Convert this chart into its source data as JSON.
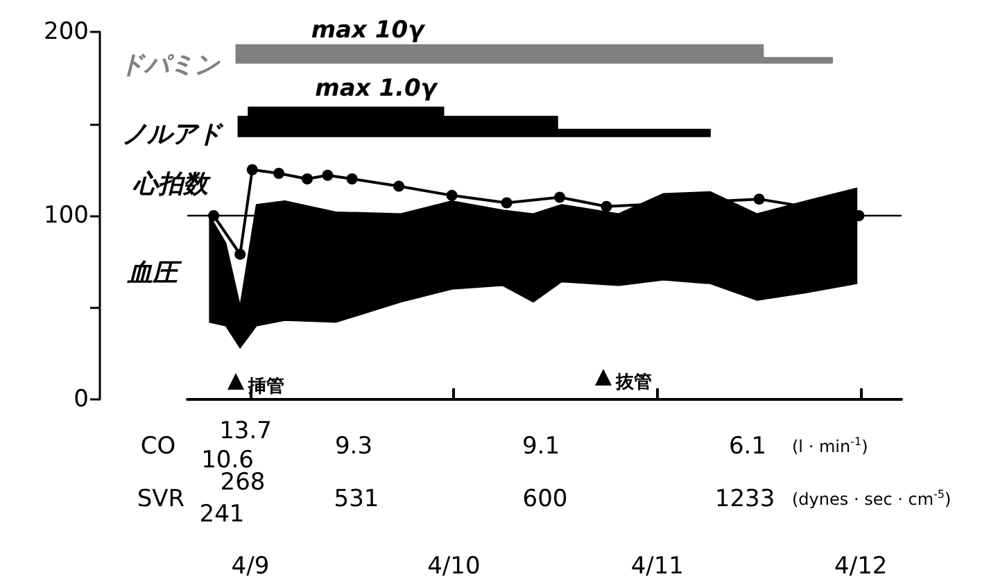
{
  "chart_data": {
    "type": "line",
    "xlim": [
      "--04-08T16:34",
      "--04-12T04:48"
    ],
    "xticks": [
      {
        "value": "--04-09",
        "label": "4/9"
      },
      {
        "value": "--04-10",
        "label": "4/10"
      },
      {
        "value": "--04-11",
        "label": "4/11"
      },
      {
        "value": "--04-12",
        "label": "4/12"
      }
    ],
    "ylim": [
      0,
      200
    ],
    "yticks": [
      0,
      100,
      200
    ],
    "series": [
      {
        "name": "ドパミン",
        "color": "#808080",
        "x": [
          "--04-08T22:19",
          "--04-11T12:29",
          "--04-11T12:29",
          "--04-11T20:38"
        ],
        "values": [
          null,
          null,
          null,
          null
        ],
        "upper": [
          193,
          193,
          186,
          186
        ],
        "lower": [
          183,
          183,
          183,
          183
        ]
      },
      {
        "name": "ノルアド",
        "color": "#000000",
        "x": [
          "--04-08T22:34",
          "--04-08T23:46",
          "--04-08T23:46",
          "--04-09T22:48",
          "--04-09T22:48",
          "--04-10T12:14",
          "--04-10T12:14",
          "--04-11T06:14"
        ],
        "values": [
          null,
          null,
          null,
          null,
          null,
          null,
          null,
          null
        ],
        "upper": [
          154,
          154,
          159,
          159,
          154,
          154,
          147,
          147
        ],
        "lower": [
          143,
          143,
          143,
          143,
          143,
          143,
          143,
          143
        ]
      },
      {
        "name": "心拍数",
        "color": "#000000",
        "marker": "circle",
        "x": [
          "--04-08T19:41",
          "--04-08T22:48",
          "--04-09T00:14",
          "--04-09T03:22",
          "--04-09T06:43",
          "--04-09T09:07",
          "--04-09T12:00",
          "--04-09T17:31",
          "--04-09T23:46",
          "--04-10T06:14",
          "--04-10T12:29",
          "--04-10T18:00",
          "--04-11T12:00",
          "--04-11T23:46"
        ],
        "values": [
          100,
          79,
          125,
          123,
          120,
          122,
          120,
          116,
          111,
          107,
          110,
          105,
          109,
          100
        ]
      },
      {
        "name": "血圧",
        "color": "#000000",
        "x": [
          "--04-08T19:12",
          "--04-08T21:07",
          "--04-08T22:48",
          "--04-09T00:43",
          "--04-09T04:05",
          "--04-09T10:05",
          "--04-09T17:46",
          "--04-09T23:46",
          "--04-10T05:46",
          "--04-10T09:22",
          "--04-10T12:43",
          "--04-10T19:26",
          "--04-11T00:43",
          "--04-11T06:14",
          "--04-11T11:46",
          "--04-11T17:31",
          "--04-11T23:31"
        ],
        "values": [
          null,
          null,
          null,
          null,
          null,
          null,
          null,
          null,
          null,
          null,
          null,
          null,
          null,
          null,
          null,
          null,
          null
        ],
        "upper": [
          100,
          85,
          51,
          106,
          108,
          102,
          101,
          108,
          103,
          101,
          106,
          101,
          112,
          113,
          101,
          108,
          115
        ],
        "lower": [
          42,
          40,
          28,
          40,
          43,
          42,
          53,
          60,
          62,
          53,
          64,
          62,
          65,
          63,
          54,
          58,
          63
        ]
      }
    ],
    "ref_lines": [
      {
        "axis": "y",
        "value": 100,
        "color": "#000000"
      }
    ],
    "annotations": [
      "max 10γ",
      "max 1.0γ",
      "挿管",
      "抜管",
      "CO",
      "13.7",
      "10.6",
      "9.3",
      "9.1",
      "6.1",
      "(l · min$^{-1}$)",
      "SVR",
      "268",
      "241",
      "531",
      "600",
      "1233",
      "(dynes · sec · cm$^{-5}$)"
    ]
  }
}
